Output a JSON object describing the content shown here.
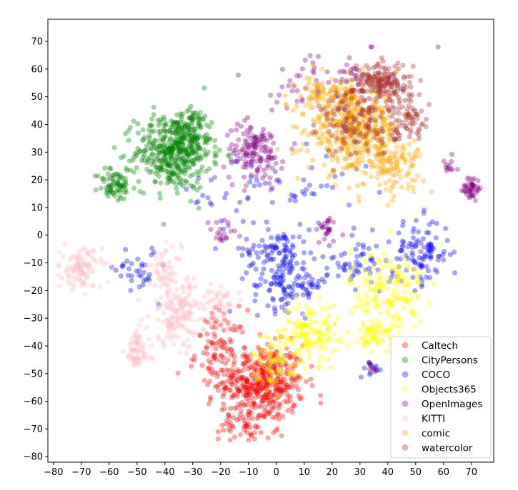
{
  "chart_data": {
    "type": "scatter",
    "title": "",
    "xlabel": "",
    "ylabel": "",
    "xlim": [
      -82,
      78
    ],
    "ylim": [
      -82,
      78
    ],
    "xticks": [
      -80,
      -70,
      -60,
      -50,
      -40,
      -30,
      -20,
      -10,
      0,
      10,
      20,
      30,
      40,
      50,
      60,
      70
    ],
    "yticks": [
      -80,
      -70,
      -60,
      -50,
      -40,
      -30,
      -20,
      -10,
      0,
      10,
      20,
      30,
      40,
      50,
      60,
      70
    ],
    "grid": false,
    "legend_position": "lower-right",
    "point_alpha": 0.35,
    "series": [
      {
        "name": "Caltech",
        "color": "#ff0000",
        "clusters": [
          {
            "center": [
              -5,
              -53
            ],
            "spread": [
              10,
              9
            ],
            "count": 420
          },
          {
            "center": [
              -20,
              -42
            ],
            "spread": [
              6,
              10
            ],
            "count": 90
          },
          {
            "center": [
              -10,
              -68
            ],
            "spread": [
              7,
              4
            ],
            "count": 60
          }
        ]
      },
      {
        "name": "CityPersons",
        "color": "#008000",
        "clusters": [
          {
            "center": [
              -37,
              30
            ],
            "spread": [
              9,
              9
            ],
            "count": 420
          },
          {
            "center": [
              -58,
              18
            ],
            "spread": [
              4,
              4
            ],
            "count": 70
          },
          {
            "center": [
              -30,
              38
            ],
            "spread": [
              5,
              5
            ],
            "count": 80
          }
        ]
      },
      {
        "name": "COCO",
        "color": "#0000ff",
        "clusters": [
          {
            "center": [
              0,
              -5
            ],
            "spread": [
              8,
              6
            ],
            "count": 90
          },
          {
            "center": [
              5,
              -18
            ],
            "spread": [
              9,
              6
            ],
            "count": 110
          },
          {
            "center": [
              52,
              -6
            ],
            "spread": [
              7,
              8
            ],
            "count": 100
          },
          {
            "center": [
              -50,
              -12
            ],
            "spread": [
              5,
              6
            ],
            "count": 35
          },
          {
            "center": [
              30,
              -10
            ],
            "spread": [
              10,
              6
            ],
            "count": 60
          },
          {
            "center": [
              0,
              15
            ],
            "spread": [
              25,
              10
            ],
            "count": 60
          },
          {
            "center": [
              34,
              -48
            ],
            "spread": [
              3,
              2
            ],
            "count": 12
          }
        ]
      },
      {
        "name": "Objects365",
        "color": "#ffff00",
        "clusters": [
          {
            "center": [
              12,
              -35
            ],
            "spread": [
              7,
              7
            ],
            "count": 140
          },
          {
            "center": [
              40,
              -20
            ],
            "spread": [
              9,
              10
            ],
            "count": 170
          },
          {
            "center": [
              36,
              -36
            ],
            "spread": [
              4,
              4
            ],
            "count": 60
          },
          {
            "center": [
              0,
              -45
            ],
            "spread": [
              6,
              6
            ],
            "count": 70
          }
        ]
      },
      {
        "name": "OpenImages",
        "color": "#800080",
        "clusters": [
          {
            "center": [
              -8,
              30
            ],
            "spread": [
              7,
              7
            ],
            "count": 140
          },
          {
            "center": [
              70,
              17
            ],
            "spread": [
              2,
              3
            ],
            "count": 45
          },
          {
            "center": [
              18,
              2
            ],
            "spread": [
              3,
              3
            ],
            "count": 25
          },
          {
            "center": [
              20,
              55
            ],
            "spread": [
              14,
              8
            ],
            "count": 80
          },
          {
            "center": [
              62,
              25
            ],
            "spread": [
              2,
              2
            ],
            "count": 12
          },
          {
            "center": [
              -20,
              0
            ],
            "spread": [
              4,
              4
            ],
            "count": 20
          },
          {
            "center": [
              34,
              -48
            ],
            "spread": [
              2,
              2
            ],
            "count": 8
          }
        ]
      },
      {
        "name": "KITTI",
        "color": "#ffc0cb",
        "clusters": [
          {
            "center": [
              -70,
              -12
            ],
            "spread": [
              5,
              5
            ],
            "count": 110
          },
          {
            "center": [
              -35,
              -28
            ],
            "spread": [
              7,
              8
            ],
            "count": 170
          },
          {
            "center": [
              -50,
              -42
            ],
            "spread": [
              3,
              5
            ],
            "count": 70
          },
          {
            "center": [
              -40,
              -12
            ],
            "spread": [
              4,
              5
            ],
            "count": 50
          },
          {
            "center": [
              -20,
              -24
            ],
            "spread": [
              4,
              4
            ],
            "count": 40
          }
        ]
      },
      {
        "name": "comic",
        "color": "#ffa500",
        "clusters": [
          {
            "center": [
              28,
              38
            ],
            "spread": [
              11,
              10
            ],
            "count": 420
          },
          {
            "center": [
              18,
              50
            ],
            "spread": [
              7,
              5
            ],
            "count": 90
          },
          {
            "center": [
              42,
              25
            ],
            "spread": [
              7,
              6
            ],
            "count": 110
          }
        ]
      },
      {
        "name": "watercolor",
        "color": "#a52a2a",
        "clusters": [
          {
            "center": [
              38,
              55
            ],
            "spread": [
              7,
              5
            ],
            "count": 170
          },
          {
            "center": [
              30,
              40
            ],
            "spread": [
              9,
              8
            ],
            "count": 140
          },
          {
            "center": [
              48,
              42
            ],
            "spread": [
              5,
              5
            ],
            "count": 60
          }
        ]
      }
    ]
  }
}
